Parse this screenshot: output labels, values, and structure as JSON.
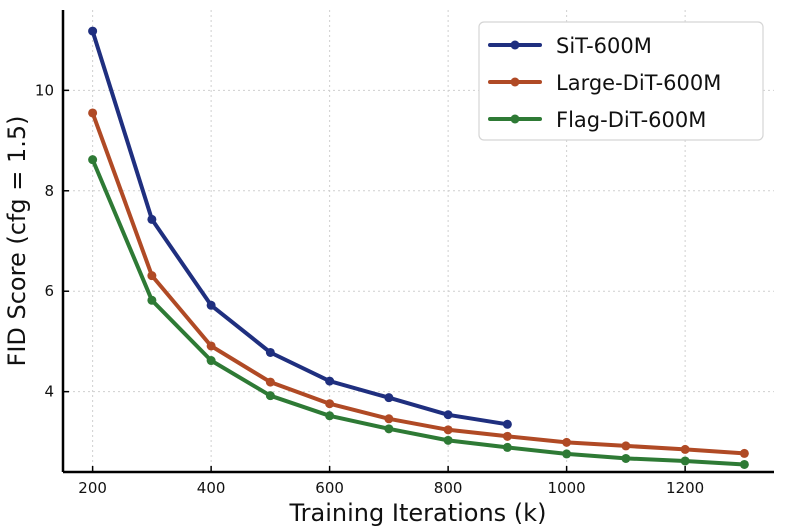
{
  "chart_data": {
    "type": "line",
    "title": "",
    "xlabel": "Training Iterations (k)",
    "ylabel": "FID Score (cfg = 1.5)",
    "xlim": [
      150,
      1350
    ],
    "ylim": [
      2.4,
      11.6
    ],
    "xticks": [
      200,
      400,
      600,
      800,
      1000,
      1200
    ],
    "yticks": [
      4,
      6,
      8,
      10
    ],
    "grid": true,
    "legend_position": "top-right",
    "series": [
      {
        "name": "SiT-600M",
        "color": "#1f2f7f",
        "x": [
          200,
          300,
          400,
          500,
          600,
          700,
          800,
          900
        ],
        "values": [
          11.18,
          7.43,
          5.72,
          4.78,
          4.21,
          3.88,
          3.54,
          3.35
        ]
      },
      {
        "name": "Large-DiT-600M",
        "color": "#b04a25",
        "x": [
          200,
          300,
          400,
          500,
          600,
          700,
          800,
          900,
          1000,
          1100,
          1200,
          1300
        ],
        "values": [
          9.55,
          6.31,
          4.91,
          4.19,
          3.76,
          3.46,
          3.24,
          3.11,
          2.99,
          2.92,
          2.85,
          2.77
        ]
      },
      {
        "name": "Flag-DiT-600M",
        "color": "#2e7a35",
        "x": [
          200,
          300,
          400,
          500,
          600,
          700,
          800,
          900,
          1000,
          1100,
          1200,
          1300
        ],
        "values": [
          8.62,
          5.82,
          4.62,
          3.92,
          3.52,
          3.26,
          3.03,
          2.89,
          2.76,
          2.67,
          2.62,
          2.55
        ]
      }
    ]
  }
}
